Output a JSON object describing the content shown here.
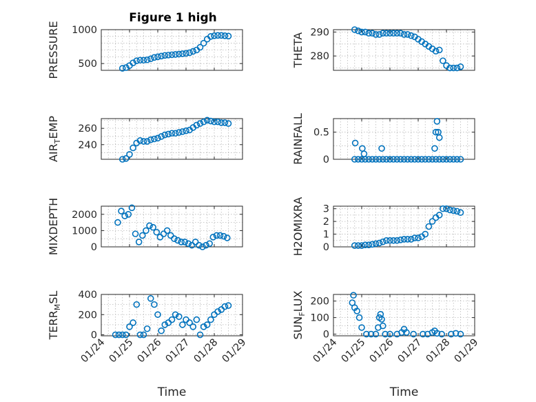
{
  "figure_title": "Figure 1 high",
  "chart_data": [
    {
      "type": "scatter",
      "title": "Figure 1 high",
      "ylabel": "PRESSURE",
      "xlabel": "",
      "xlim": [
        "01/24",
        "01/29"
      ],
      "ylim": [
        400,
        1000
      ],
      "yticks": [
        500,
        1000
      ],
      "yminor": [
        600,
        700,
        800,
        900
      ],
      "xticks": [],
      "marker_color": "#0072BD",
      "grid": true,
      "x": [
        "01/24 18:00",
        "01/24 21:00",
        "01/25 00:00",
        "01/25 03:00",
        "01/25 06:00",
        "01/25 09:00",
        "01/25 12:00",
        "01/25 15:00",
        "01/25 18:00",
        "01/25 21:00",
        "01/26 00:00",
        "01/26 03:00",
        "01/26 06:00",
        "01/26 09:00",
        "01/26 12:00",
        "01/26 15:00",
        "01/26 18:00",
        "01/26 21:00",
        "01/27 00:00",
        "01/27 03:00",
        "01/27 06:00",
        "01/27 09:00",
        "01/27 12:00",
        "01/27 15:00",
        "01/27 18:00",
        "01/27 21:00",
        "01/28 00:00",
        "01/28 03:00",
        "01/28 06:00",
        "01/28 09:00",
        "01/28 12:00"
      ],
      "y": [
        430,
        440,
        470,
        510,
        540,
        550,
        550,
        555,
        570,
        590,
        600,
        610,
        620,
        625,
        630,
        635,
        640,
        645,
        650,
        660,
        680,
        700,
        740,
        800,
        860,
        900,
        910,
        915,
        915,
        910,
        905
      ]
    },
    {
      "type": "scatter",
      "title": "",
      "ylabel": "THETA",
      "xlabel": "",
      "xlim": [
        "01/24",
        "01/29"
      ],
      "ylim": [
        274,
        291
      ],
      "yticks": [
        280,
        290
      ],
      "yminor": [
        275,
        285
      ],
      "xticks": [],
      "marker_color": "#0072BD",
      "grid": true,
      "x": [
        "01/24 18:00",
        "01/24 21:00",
        "01/25 00:00",
        "01/25 03:00",
        "01/25 06:00",
        "01/25 09:00",
        "01/25 12:00",
        "01/25 15:00",
        "01/25 18:00",
        "01/25 21:00",
        "01/26 00:00",
        "01/26 03:00",
        "01/26 06:00",
        "01/26 09:00",
        "01/26 12:00",
        "01/26 15:00",
        "01/26 18:00",
        "01/26 21:00",
        "01/27 00:00",
        "01/27 03:00",
        "01/27 06:00",
        "01/27 09:00",
        "01/27 12:00",
        "01/27 15:00",
        "01/27 18:00",
        "01/27 21:00",
        "01/28 00:00",
        "01/28 03:00",
        "01/28 06:00",
        "01/28 09:00",
        "01/28 12:00"
      ],
      "y": [
        291,
        290.5,
        290,
        290,
        289.5,
        289.5,
        289,
        289,
        289.5,
        289.5,
        289.5,
        289.5,
        289.5,
        289.5,
        289,
        289,
        288.5,
        288,
        287,
        286,
        285,
        284,
        283,
        282,
        282.5,
        278,
        276,
        275,
        275,
        275,
        275.5
      ]
    },
    {
      "type": "scatter",
      "title": "",
      "ylabel": "AIR_TEMP",
      "xlabel": "",
      "xlim": [
        "01/24",
        "01/29"
      ],
      "ylim": [
        222,
        272
      ],
      "yticks": [
        240,
        260
      ],
      "yminor": [
        230,
        250,
        270
      ],
      "xticks": [],
      "marker_color": "#0072BD",
      "grid": true,
      "x": [
        "01/24 18:00",
        "01/24 21:00",
        "01/25 00:00",
        "01/25 03:00",
        "01/25 06:00",
        "01/25 09:00",
        "01/25 12:00",
        "01/25 15:00",
        "01/25 18:00",
        "01/25 21:00",
        "01/26 00:00",
        "01/26 03:00",
        "01/26 06:00",
        "01/26 09:00",
        "01/26 12:00",
        "01/26 15:00",
        "01/26 18:00",
        "01/26 21:00",
        "01/27 00:00",
        "01/27 03:00",
        "01/27 06:00",
        "01/27 09:00",
        "01/27 12:00",
        "01/27 15:00",
        "01/27 18:00",
        "01/27 21:00",
        "01/28 00:00",
        "01/28 03:00",
        "01/28 06:00",
        "01/28 09:00",
        "01/28 12:00"
      ],
      "y": [
        222,
        223,
        228,
        236,
        242,
        245,
        244,
        244,
        246,
        247,
        248,
        250,
        252,
        253,
        254,
        254,
        255,
        256,
        257,
        258,
        261,
        264,
        266,
        268,
        270,
        269,
        268,
        268,
        267,
        267,
        266
      ]
    },
    {
      "type": "scatter",
      "title": "",
      "ylabel": "RAINFALL",
      "xlabel": "",
      "xlim": [
        "01/24",
        "01/29"
      ],
      "ylim": [
        0,
        0.75
      ],
      "yticks": [
        0,
        0.5
      ],
      "yminor": [
        0.25
      ],
      "xticks": [],
      "marker_color": "#0072BD",
      "grid": true,
      "x": [
        "01/24 18:00",
        "01/24 21:00",
        "01/25 00:00",
        "01/25 03:00",
        "01/25 06:00",
        "01/25 09:00",
        "01/25 12:00",
        "01/25 15:00",
        "01/25 18:00",
        "01/25 21:00",
        "01/26 00:00",
        "01/26 03:00",
        "01/26 06:00",
        "01/26 09:00",
        "01/26 12:00",
        "01/26 15:00",
        "01/26 18:00",
        "01/26 21:00",
        "01/27 00:00",
        "01/27 03:00",
        "01/27 06:00",
        "01/27 09:00",
        "01/27 12:00",
        "01/27 15:00",
        "01/27 18:00",
        "01/27 21:00",
        "01/28 00:00",
        "01/28 03:00",
        "01/28 06:00",
        "01/28 09:00",
        "01/28 12:00",
        "01/24 18:30",
        "01/25 00:30",
        "01/25 02:00",
        "01/25 17:00",
        "01/27 14:00",
        "01/27 15:00",
        "01/27 16:00",
        "01/27 17:00",
        "01/27 18:00"
      ],
      "y": [
        0,
        0,
        0,
        0,
        0,
        0,
        0,
        0,
        0,
        0,
        0,
        0,
        0,
        0,
        0,
        0,
        0,
        0,
        0,
        0,
        0,
        0,
        0,
        0,
        0,
        0,
        0,
        0,
        0,
        0,
        0,
        0.3,
        0.2,
        0.1,
        0.2,
        0.2,
        0.5,
        0.7,
        0.5,
        0.4
      ]
    },
    {
      "type": "scatter",
      "title": "",
      "ylabel": "MIXDEPTH",
      "xlabel": "",
      "xlim": [
        "01/24",
        "01/29"
      ],
      "ylim": [
        0,
        2500
      ],
      "yticks": [
        0,
        1000,
        2000
      ],
      "yminor": [
        500,
        1500
      ],
      "xticks": [],
      "marker_color": "#0072BD",
      "grid": true,
      "x": [
        "01/24 14:00",
        "01/24 17:00",
        "01/24 20:00",
        "01/24 23:00",
        "01/25 02:00",
        "01/25 05:00",
        "01/25 08:00",
        "01/25 11:00",
        "01/25 14:00",
        "01/25 17:00",
        "01/25 20:00",
        "01/25 23:00",
        "01/26 02:00",
        "01/26 05:00",
        "01/26 08:00",
        "01/26 11:00",
        "01/26 14:00",
        "01/26 17:00",
        "01/26 20:00",
        "01/26 23:00",
        "01/27 02:00",
        "01/27 05:00",
        "01/27 08:00",
        "01/27 11:00",
        "01/27 14:00",
        "01/27 17:00",
        "01/27 20:00",
        "01/27 23:00",
        "01/28 02:00",
        "01/28 05:00",
        "01/28 08:00",
        "01/28 11:00"
      ],
      "y": [
        1500,
        2200,
        1900,
        2000,
        2400,
        800,
        300,
        700,
        1000,
        1300,
        1200,
        900,
        600,
        800,
        1000,
        700,
        500,
        400,
        300,
        300,
        200,
        100,
        300,
        100,
        0,
        100,
        200,
        600,
        700,
        700,
        650,
        550
      ]
    },
    {
      "type": "scatter",
      "title": "",
      "ylabel": "H2OMIXRA",
      "xlabel": "",
      "xlim": [
        "01/24",
        "01/29"
      ],
      "ylim": [
        0,
        3.2
      ],
      "yticks": [
        0,
        1,
        2,
        3
      ],
      "yminor": [
        0.5,
        1.5,
        2.5
      ],
      "xticks": [],
      "marker_color": "#0072BD",
      "grid": true,
      "x": [
        "01/24 18:00",
        "01/24 21:00",
        "01/25 00:00",
        "01/25 03:00",
        "01/25 06:00",
        "01/25 09:00",
        "01/25 12:00",
        "01/25 15:00",
        "01/25 18:00",
        "01/25 21:00",
        "01/26 00:00",
        "01/26 03:00",
        "01/26 06:00",
        "01/26 09:00",
        "01/26 12:00",
        "01/26 15:00",
        "01/26 18:00",
        "01/26 21:00",
        "01/27 00:00",
        "01/27 03:00",
        "01/27 06:00",
        "01/27 09:00",
        "01/27 12:00",
        "01/27 15:00",
        "01/27 18:00",
        "01/27 21:00",
        "01/28 00:00",
        "01/28 03:00",
        "01/28 06:00",
        "01/28 09:00",
        "01/28 12:00"
      ],
      "y": [
        0.1,
        0.1,
        0.1,
        0.15,
        0.15,
        0.2,
        0.25,
        0.3,
        0.4,
        0.5,
        0.5,
        0.5,
        0.5,
        0.55,
        0.6,
        0.6,
        0.6,
        0.7,
        0.7,
        0.8,
        1.0,
        1.6,
        2.0,
        2.3,
        2.5,
        3.0,
        3.0,
        2.9,
        2.85,
        2.8,
        2.7
      ]
    },
    {
      "type": "scatter",
      "title": "",
      "ylabel": "TERR_MSL",
      "xlabel": "Time",
      "xlim": [
        "01/24",
        "01/29"
      ],
      "ylim": [
        -10,
        400
      ],
      "yticks": [
        0,
        200,
        400
      ],
      "yminor": [
        100,
        300
      ],
      "xticks": [
        "01/24",
        "01/25",
        "01/26",
        "01/27",
        "01/28",
        "01/29"
      ],
      "marker_color": "#0072BD",
      "grid": true,
      "x": [
        "01/24 12:00",
        "01/24 15:00",
        "01/24 18:00",
        "01/24 21:00",
        "01/25 00:00",
        "01/25 03:00",
        "01/25 06:00",
        "01/25 09:00",
        "01/25 12:00",
        "01/25 15:00",
        "01/25 18:00",
        "01/25 21:00",
        "01/26 00:00",
        "01/26 03:00",
        "01/26 06:00",
        "01/26 09:00",
        "01/26 12:00",
        "01/26 15:00",
        "01/26 18:00",
        "01/26 21:00",
        "01/27 00:00",
        "01/27 03:00",
        "01/27 06:00",
        "01/27 09:00",
        "01/27 12:00",
        "01/27 15:00",
        "01/27 18:00",
        "01/27 21:00",
        "01/28 00:00",
        "01/28 03:00",
        "01/28 06:00",
        "01/28 09:00",
        "01/28 12:00"
      ],
      "y": [
        0,
        0,
        0,
        0,
        80,
        120,
        300,
        0,
        0,
        60,
        360,
        300,
        200,
        40,
        100,
        120,
        150,
        200,
        180,
        100,
        150,
        120,
        80,
        150,
        0,
        80,
        100,
        150,
        200,
        230,
        250,
        280,
        290
      ]
    },
    {
      "type": "scatter",
      "title": "",
      "ylabel": "SUN_FLUX",
      "xlabel": "Time",
      "xlim": [
        "01/24",
        "01/29"
      ],
      "ylim": [
        -10,
        240
      ],
      "yticks": [
        0,
        100,
        200
      ],
      "yminor": [
        50,
        150
      ],
      "xticks": [
        "01/24",
        "01/25",
        "01/26",
        "01/27",
        "01/28",
        "01/29"
      ],
      "marker_color": "#0072BD",
      "grid": true,
      "x": [
        "01/24 16:00",
        "01/24 17:00",
        "01/24 18:00",
        "01/24 20:00",
        "01/24 22:00",
        "01/25 00:00",
        "01/25 04:00",
        "01/25 08:00",
        "01/25 12:00",
        "01/25 14:00",
        "01/25 15:00",
        "01/25 16:00",
        "01/25 17:00",
        "01/25 18:00",
        "01/25 20:00",
        "01/26 00:00",
        "01/26 06:00",
        "01/26 10:00",
        "01/26 12:00",
        "01/26 14:00",
        "01/26 20:00",
        "01/27 04:00",
        "01/27 08:00",
        "01/27 12:00",
        "01/27 14:00",
        "01/27 16:00",
        "01/27 20:00",
        "01/28 04:00",
        "01/28 08:00",
        "01/28 12:00"
      ],
      "y": [
        190,
        235,
        160,
        140,
        100,
        40,
        0,
        0,
        0,
        40,
        100,
        120,
        90,
        50,
        0,
        0,
        0,
        10,
        30,
        10,
        0,
        0,
        0,
        10,
        20,
        5,
        0,
        0,
        5,
        0
      ]
    }
  ]
}
